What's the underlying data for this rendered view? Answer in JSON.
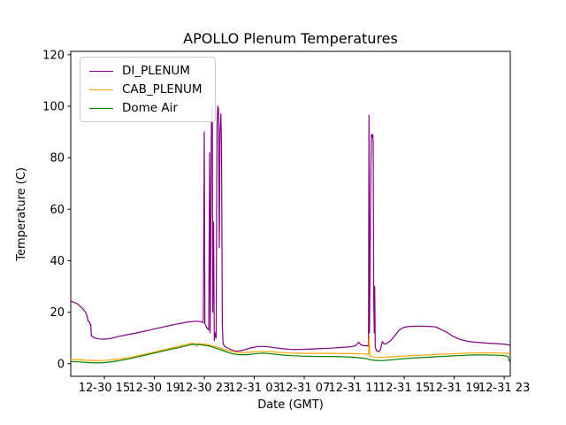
{
  "chart_data": {
    "type": "line",
    "title": "APOLLO Plenum Temperatures",
    "xlabel": "Date (GMT)",
    "ylabel": "Temperature (C)",
    "grid": false,
    "legend_position": "upper left",
    "axis_color": "#000000",
    "background": "#ffffff",
    "x_axis_note": "time axis, hours since 12-30 00:00 GMT",
    "xlim_hours": [
      12.31,
      47.49
    ],
    "ylim": [
      -4.9,
      121.3
    ],
    "y_ticks": [
      0,
      20,
      40,
      60,
      80,
      100,
      120
    ],
    "x_ticks": [
      {
        "hour": 15,
        "label": "12-30 15"
      },
      {
        "hour": 19,
        "label": "12-30 19"
      },
      {
        "hour": 23,
        "label": "12-30 23"
      },
      {
        "hour": 27,
        "label": "12-31 03"
      },
      {
        "hour": 31,
        "label": "12-31 07"
      },
      {
        "hour": 35,
        "label": "12-31 11"
      },
      {
        "hour": 39,
        "label": "12-31 15"
      },
      {
        "hour": 43,
        "label": "12-31 19"
      },
      {
        "hour": 47,
        "label": "12-31 23"
      }
    ],
    "series": [
      {
        "name": "DI_PLENUM",
        "color": "#800080",
        "points": [
          [
            12.31,
            24.3
          ],
          [
            12.5,
            24.0
          ],
          [
            12.75,
            23.5
          ],
          [
            13.0,
            22.6
          ],
          [
            13.3,
            21.2
          ],
          [
            13.5,
            19.9
          ],
          [
            13.62,
            18.6
          ],
          [
            13.7,
            16.5
          ],
          [
            13.82,
            16.2
          ],
          [
            13.86,
            15.3
          ],
          [
            13.92,
            15.2
          ],
          [
            13.96,
            10.8
          ],
          [
            14.2,
            10.0
          ],
          [
            14.6,
            9.6
          ],
          [
            15.0,
            9.5
          ],
          [
            15.5,
            9.8
          ],
          [
            16.1,
            10.5
          ],
          [
            16.9,
            11.3
          ],
          [
            17.7,
            12.1
          ],
          [
            18.5,
            12.9
          ],
          [
            19.3,
            13.8
          ],
          [
            20.1,
            14.7
          ],
          [
            20.9,
            15.5
          ],
          [
            21.7,
            16.2
          ],
          [
            22.3,
            16.5
          ],
          [
            22.75,
            16.3
          ],
          [
            22.92,
            15.9
          ],
          [
            23.0,
            90
          ],
          [
            23.05,
            15.5
          ],
          [
            23.2,
            14.0
          ],
          [
            23.35,
            13.0
          ],
          [
            23.42,
            82
          ],
          [
            23.47,
            12
          ],
          [
            23.53,
            60
          ],
          [
            23.58,
            100
          ],
          [
            23.64,
            99
          ],
          [
            23.68,
            20
          ],
          [
            23.74,
            55
          ],
          [
            23.8,
            9
          ],
          [
            23.88,
            12
          ],
          [
            23.95,
            10
          ],
          [
            24.02,
            93
          ],
          [
            24.08,
            100
          ],
          [
            24.14,
            99
          ],
          [
            24.2,
            45
          ],
          [
            24.26,
            90
          ],
          [
            24.32,
            97
          ],
          [
            24.38,
            85
          ],
          [
            24.44,
            15
          ],
          [
            24.5,
            8
          ],
          [
            24.6,
            6.8
          ],
          [
            24.85,
            6.1
          ],
          [
            25.2,
            5.3
          ],
          [
            25.6,
            4.8
          ],
          [
            26.1,
            5.2
          ],
          [
            26.7,
            6.1
          ],
          [
            27.3,
            6.7
          ],
          [
            27.9,
            6.7
          ],
          [
            28.6,
            6.2
          ],
          [
            29.3,
            5.8
          ],
          [
            30.1,
            5.5
          ],
          [
            31.0,
            5.6
          ],
          [
            32.0,
            5.8
          ],
          [
            33.0,
            6.0
          ],
          [
            34.0,
            6.3
          ],
          [
            34.7,
            6.6
          ],
          [
            35.1,
            6.9
          ],
          [
            35.35,
            8.3
          ],
          [
            35.55,
            7.3
          ],
          [
            35.8,
            6.9
          ],
          [
            36.05,
            7.0
          ],
          [
            36.14,
            6.6
          ],
          [
            36.18,
            96.5
          ],
          [
            36.22,
            12
          ],
          [
            36.27,
            40
          ],
          [
            36.32,
            70
          ],
          [
            36.37,
            89
          ],
          [
            36.43,
            88
          ],
          [
            36.48,
            89
          ],
          [
            36.52,
            86
          ],
          [
            36.56,
            25
          ],
          [
            36.6,
            12
          ],
          [
            36.64,
            30
          ],
          [
            36.68,
            6.5
          ],
          [
            36.78,
            5.0
          ],
          [
            36.95,
            4.7
          ],
          [
            37.1,
            5.5
          ],
          [
            37.25,
            8.6
          ],
          [
            37.4,
            7.6
          ],
          [
            37.6,
            7.9
          ],
          [
            37.9,
            8.9
          ],
          [
            38.2,
            10.6
          ],
          [
            38.6,
            13.1
          ],
          [
            39.0,
            14.2
          ],
          [
            39.5,
            14.5
          ],
          [
            40.2,
            14.6
          ],
          [
            41.0,
            14.5
          ],
          [
            41.5,
            14.3
          ],
          [
            42.0,
            13.2
          ],
          [
            42.4,
            12.2
          ],
          [
            42.9,
            10.6
          ],
          [
            43.5,
            9.4
          ],
          [
            44.1,
            8.7
          ],
          [
            44.8,
            8.3
          ],
          [
            45.6,
            8.0
          ],
          [
            46.4,
            7.8
          ],
          [
            47.1,
            7.5
          ],
          [
            47.45,
            7.2
          ]
        ]
      },
      {
        "name": "CAB_PLENUM",
        "color": "#ffa500",
        "points": [
          [
            12.31,
            1.6
          ],
          [
            13.0,
            1.5
          ],
          [
            13.8,
            1.3
          ],
          [
            14.6,
            1.2
          ],
          [
            15.4,
            1.4
          ],
          [
            16.2,
            1.8
          ],
          [
            17.0,
            2.4
          ],
          [
            17.8,
            3.2
          ],
          [
            18.6,
            4.1
          ],
          [
            19.4,
            5.0
          ],
          [
            20.2,
            5.9
          ],
          [
            21.0,
            6.8
          ],
          [
            21.6,
            7.5
          ],
          [
            22.0,
            7.9
          ],
          [
            22.3,
            7.8
          ],
          [
            22.4,
            6.7
          ],
          [
            22.5,
            7.8
          ],
          [
            22.9,
            7.6
          ],
          [
            23.3,
            7.3
          ],
          [
            23.7,
            6.9
          ],
          [
            24.0,
            6.5
          ],
          [
            24.3,
            6.1
          ],
          [
            24.6,
            5.6
          ],
          [
            24.9,
            5.0
          ],
          [
            25.3,
            4.6
          ],
          [
            25.8,
            4.3
          ],
          [
            26.4,
            4.4
          ],
          [
            27.0,
            4.6
          ],
          [
            27.7,
            4.8
          ],
          [
            28.4,
            4.6
          ],
          [
            29.2,
            4.3
          ],
          [
            30.0,
            4.1
          ],
          [
            31.0,
            4.0
          ],
          [
            32.0,
            4.0
          ],
          [
            33.0,
            4.0
          ],
          [
            34.0,
            3.9
          ],
          [
            35.0,
            3.9
          ],
          [
            35.6,
            3.8
          ],
          [
            36.0,
            3.7
          ],
          [
            36.15,
            3.6
          ],
          [
            36.2,
            10.8
          ],
          [
            36.26,
            3.0
          ],
          [
            36.5,
            2.6
          ],
          [
            36.9,
            2.4
          ],
          [
            37.4,
            2.5
          ],
          [
            38.0,
            2.7
          ],
          [
            38.8,
            2.9
          ],
          [
            39.6,
            3.1
          ],
          [
            40.4,
            3.3
          ],
          [
            41.2,
            3.5
          ],
          [
            42.0,
            3.7
          ],
          [
            42.8,
            3.8
          ],
          [
            43.6,
            4.0
          ],
          [
            44.4,
            4.1
          ],
          [
            45.2,
            4.2
          ],
          [
            46.0,
            4.2
          ],
          [
            46.8,
            4.1
          ],
          [
            47.45,
            3.9
          ]
        ]
      },
      {
        "name": "Dome Air",
        "color": "#008000",
        "points": [
          [
            12.31,
            0.8
          ],
          [
            13.0,
            0.7
          ],
          [
            13.8,
            0.4
          ],
          [
            14.6,
            0.3
          ],
          [
            15.4,
            0.6
          ],
          [
            16.2,
            1.2
          ],
          [
            17.0,
            1.9
          ],
          [
            17.8,
            2.8
          ],
          [
            18.6,
            3.7
          ],
          [
            19.4,
            4.6
          ],
          [
            20.2,
            5.5
          ],
          [
            21.0,
            6.3
          ],
          [
            21.6,
            7.0
          ],
          [
            22.0,
            7.5
          ],
          [
            22.5,
            7.4
          ],
          [
            22.9,
            7.2
          ],
          [
            23.3,
            6.9
          ],
          [
            23.7,
            6.4
          ],
          [
            24.0,
            5.9
          ],
          [
            24.3,
            5.4
          ],
          [
            24.6,
            4.9
          ],
          [
            24.9,
            4.3
          ],
          [
            25.3,
            3.8
          ],
          [
            25.8,
            3.5
          ],
          [
            26.4,
            3.5
          ],
          [
            27.0,
            3.8
          ],
          [
            27.7,
            4.1
          ],
          [
            28.4,
            3.8
          ],
          [
            29.2,
            3.4
          ],
          [
            30.0,
            3.1
          ],
          [
            31.0,
            2.9
          ],
          [
            32.0,
            2.8
          ],
          [
            33.0,
            2.8
          ],
          [
            34.0,
            2.7
          ],
          [
            35.0,
            2.5
          ],
          [
            35.6,
            2.2
          ],
          [
            36.0,
            1.9
          ],
          [
            36.3,
            1.5
          ],
          [
            36.7,
            1.3
          ],
          [
            37.2,
            1.2
          ],
          [
            37.8,
            1.4
          ],
          [
            38.4,
            1.7
          ],
          [
            39.2,
            2.0
          ],
          [
            40.0,
            2.3
          ],
          [
            40.8,
            2.5
          ],
          [
            41.6,
            2.7
          ],
          [
            42.4,
            2.9
          ],
          [
            43.2,
            3.1
          ],
          [
            44.0,
            3.3
          ],
          [
            44.8,
            3.4
          ],
          [
            45.6,
            3.4
          ],
          [
            46.4,
            3.3
          ],
          [
            47.0,
            3.1
          ],
          [
            47.3,
            2.9
          ],
          [
            47.42,
            1.0
          ]
        ]
      }
    ]
  }
}
